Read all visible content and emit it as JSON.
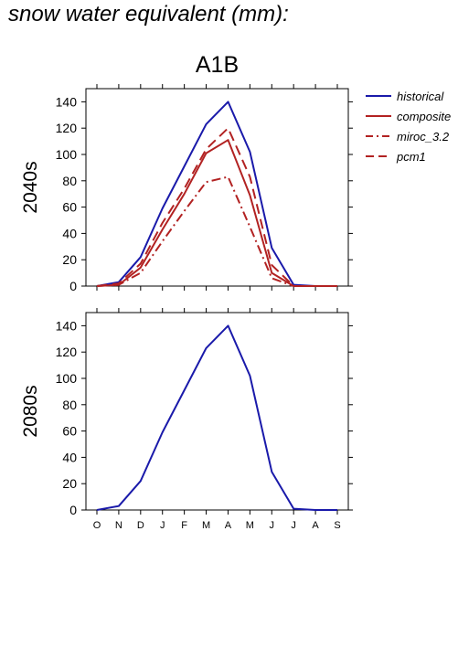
{
  "page": {
    "title": "snow water equivalent (mm):"
  },
  "chart_data": {
    "type": "line",
    "title": "A1B",
    "x": [
      "O",
      "N",
      "D",
      "J",
      "F",
      "M",
      "A",
      "M",
      "J",
      "J",
      "A",
      "S"
    ],
    "ylim": [
      0,
      150
    ],
    "yticks": [
      0,
      20,
      40,
      60,
      80,
      100,
      120,
      140
    ],
    "legend_position": "right",
    "legend": [
      "historical",
      "composite",
      "miroc_3.2",
      "pcm1"
    ],
    "panels": [
      {
        "row_label": "2040s",
        "series": [
          {
            "name": "historical",
            "color": "#1a1aaa",
            "dash": "solid",
            "values": [
              0,
              3,
              22,
              59,
              91,
              123,
              140,
              102,
              29,
              1,
              0,
              0
            ]
          },
          {
            "name": "composite",
            "color": "#b22222",
            "dash": "solid",
            "values": [
              0,
              1,
              14,
              43,
              70,
              101,
              111,
              69,
              10,
              0,
              0,
              0
            ]
          },
          {
            "name": "miroc_3.2",
            "color": "#b22222",
            "dash": "dashdot",
            "values": [
              0,
              1,
              10,
              34,
              57,
              79,
              83,
              45,
              6,
              0,
              0,
              0
            ]
          },
          {
            "name": "pcm1",
            "color": "#b22222",
            "dash": "dash",
            "values": [
              0,
              2,
              17,
              48,
              74,
              104,
              120,
              83,
              16,
              0,
              0,
              0
            ]
          }
        ]
      },
      {
        "row_label": "2080s",
        "series": [
          {
            "name": "historical",
            "color": "#1a1aaa",
            "dash": "solid",
            "values": [
              0,
              3,
              22,
              59,
              91,
              123,
              140,
              102,
              29,
              1,
              0,
              0
            ]
          }
        ]
      }
    ]
  }
}
